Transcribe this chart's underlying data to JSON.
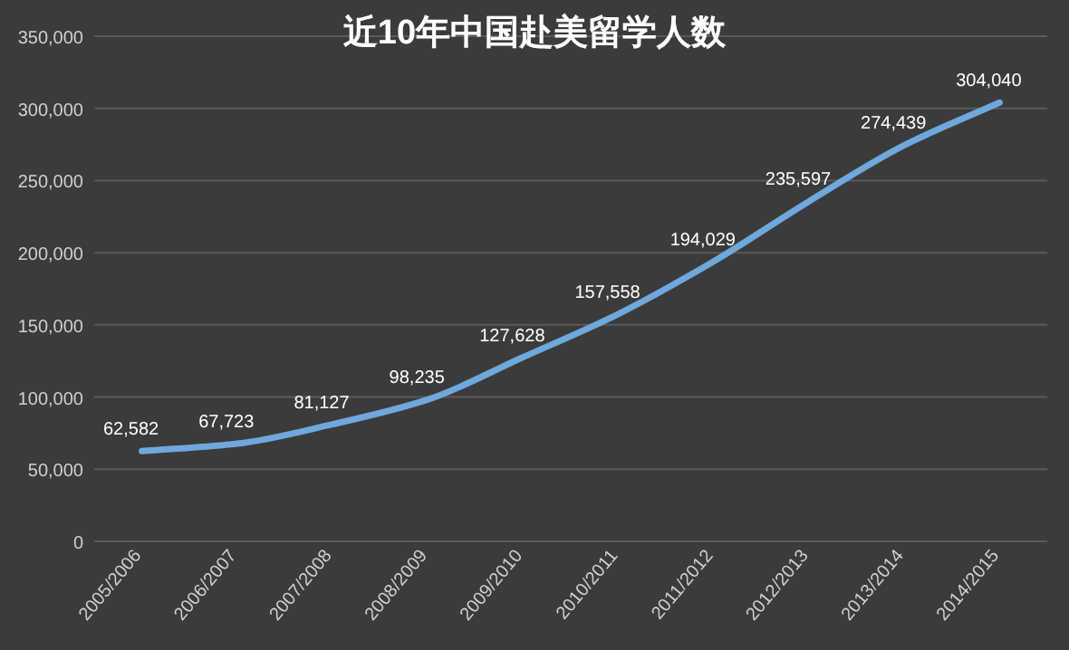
{
  "chart_data": {
    "type": "line",
    "title": "近10年中国赴美留学人数",
    "categories": [
      "2005/2006",
      "2006/2007",
      "2007/2008",
      "2008/2009",
      "2009/2010",
      "2010/2011",
      "2011/2012",
      "2012/2013",
      "2013/2014",
      "2014/2015"
    ],
    "values": [
      62582,
      67723,
      81127,
      98235,
      127628,
      157558,
      194029,
      235597,
      274439,
      304040
    ],
    "color": "#6fa8dc",
    "ylim": [
      0,
      350000
    ],
    "yticks": [
      {
        "value": 0,
        "label": "0"
      },
      {
        "value": 50000,
        "label": "50,000"
      },
      {
        "value": 100000,
        "label": "100,000"
      },
      {
        "value": 150000,
        "label": "150,000"
      },
      {
        "value": 200000,
        "label": "200,000"
      },
      {
        "value": 250000,
        "label": "250,000"
      },
      {
        "value": 300000,
        "label": "300,000"
      },
      {
        "value": 350000,
        "label": "350,000"
      }
    ],
    "grid": "y",
    "value_labels": [
      "62,582",
      "67,723",
      "81,127",
      "98,235",
      "127,628",
      "157,558",
      "194,029",
      "235,597",
      "274,439",
      "304,040"
    ]
  }
}
